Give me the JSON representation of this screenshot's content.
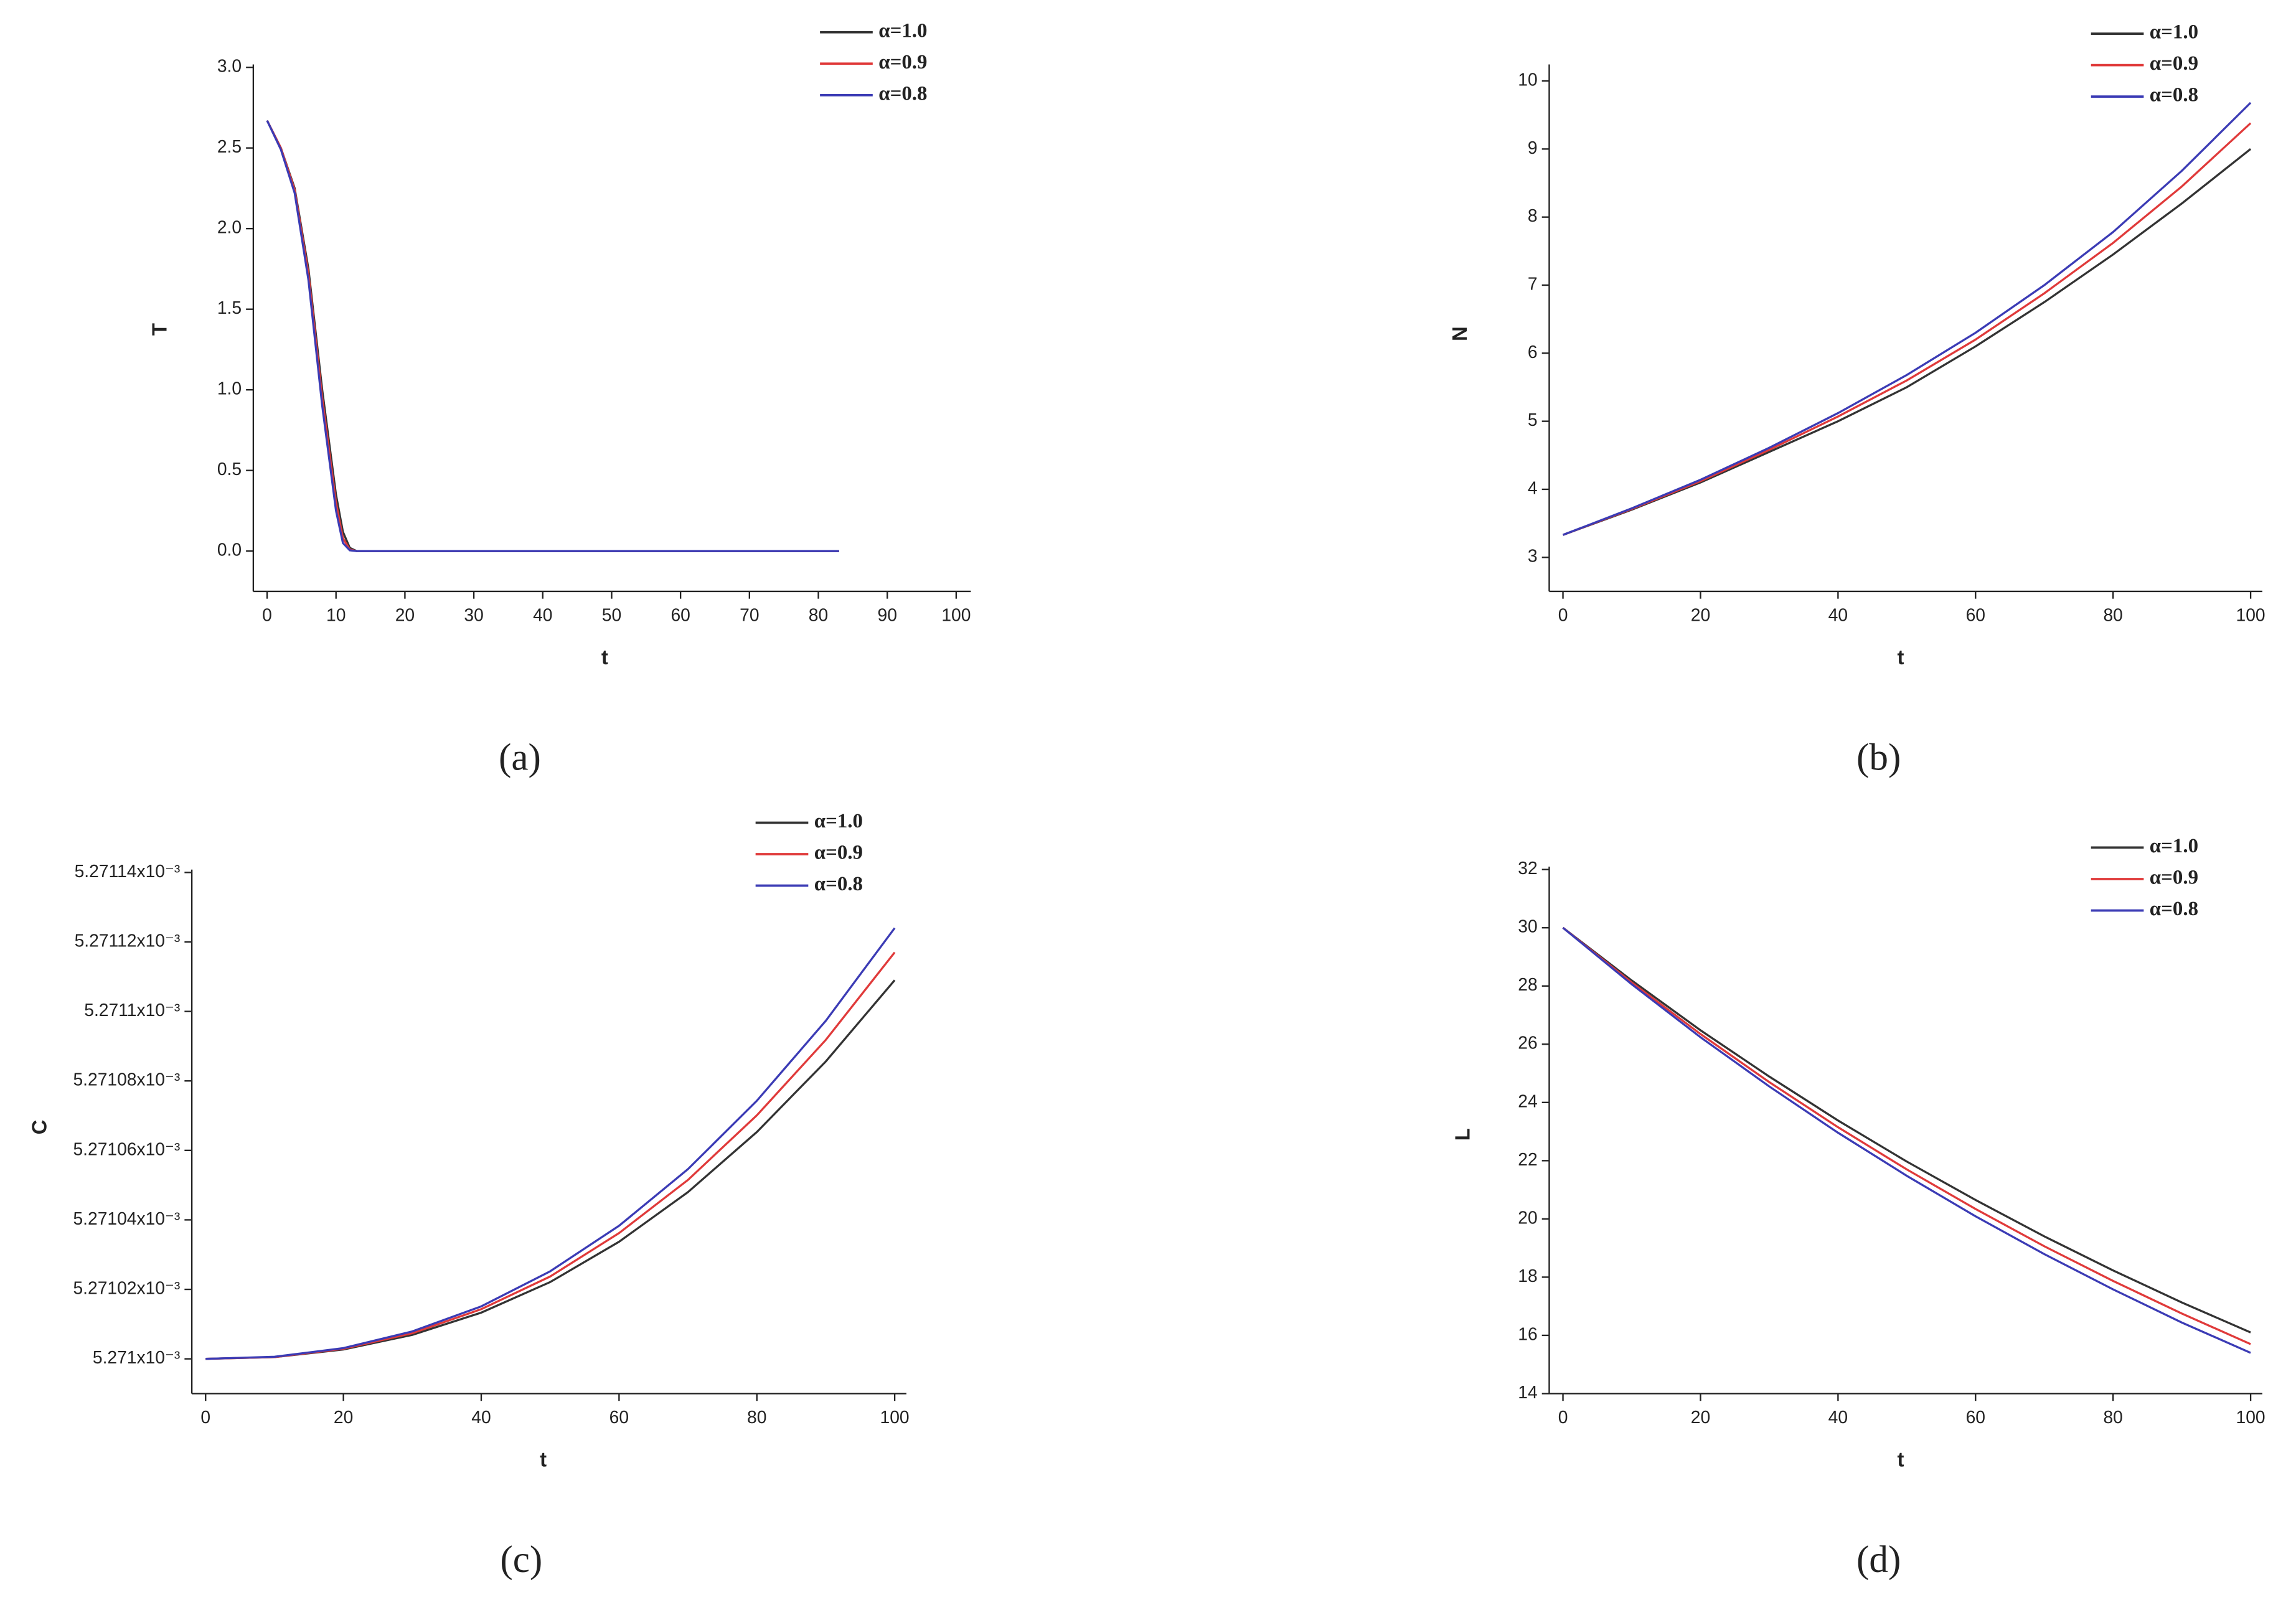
{
  "chart_data": [
    {
      "type": "line",
      "caption": "(a)",
      "xlabel": "t",
      "ylabel": "T",
      "x": [
        0,
        2,
        4,
        6,
        8,
        10,
        11,
        12,
        13,
        20,
        30,
        40,
        50,
        60,
        70,
        80,
        83
      ],
      "series": [
        {
          "name": "α=1.0",
          "color": "#333333",
          "values": [
            2.67,
            2.5,
            2.25,
            1.75,
            1.0,
            0.35,
            0.12,
            0.02,
            0,
            0,
            0,
            0,
            0,
            0,
            0,
            0,
            0
          ]
        },
        {
          "name": "α=0.9",
          "color": "#e03a3a",
          "values": [
            2.67,
            2.5,
            2.24,
            1.72,
            0.95,
            0.3,
            0.08,
            0.01,
            0,
            0,
            0,
            0,
            0,
            0,
            0,
            0,
            0
          ]
        },
        {
          "name": "α=0.8",
          "color": "#3b3bb5",
          "values": [
            2.67,
            2.49,
            2.22,
            1.68,
            0.9,
            0.25,
            0.05,
            0.005,
            0,
            0,
            0,
            0,
            0,
            0,
            0,
            0,
            0
          ]
        }
      ],
      "xlim": [
        -2,
        100
      ],
      "ylim": [
        -0.25,
        3.0
      ],
      "xticks": [
        0,
        10,
        20,
        30,
        40,
        50,
        60,
        70,
        80,
        90,
        100
      ],
      "yticks": [
        {
          "value": 0,
          "label": "0.0"
        },
        0.5,
        {
          "value": 1,
          "label": "1.0"
        },
        1.5,
        {
          "value": 2,
          "label": "2.0"
        },
        2.5,
        {
          "value": 3,
          "label": "3.0"
        }
      ]
    },
    {
      "type": "line",
      "caption": "(b)",
      "xlabel": "t",
      "ylabel": "N",
      "x": [
        0,
        10,
        20,
        30,
        40,
        50,
        60,
        70,
        80,
        90,
        100
      ],
      "series": [
        {
          "name": "α=1.0",
          "color": "#333333",
          "values": [
            3.33,
            3.7,
            4.1,
            4.55,
            5.0,
            5.5,
            6.1,
            6.75,
            7.45,
            8.2,
            9.0
          ]
        },
        {
          "name": "α=0.9",
          "color": "#e03a3a",
          "values": [
            3.33,
            3.71,
            4.12,
            4.58,
            5.07,
            5.6,
            6.2,
            6.88,
            7.62,
            8.45,
            9.38
          ]
        },
        {
          "name": "α=0.8",
          "color": "#3b3bb5",
          "values": [
            3.33,
            3.72,
            4.14,
            4.61,
            5.12,
            5.68,
            6.3,
            7.0,
            7.78,
            8.68,
            9.68
          ]
        }
      ],
      "xlim": [
        -2,
        100
      ],
      "ylim": [
        2.5,
        10.2
      ],
      "xticks": [
        0,
        20,
        40,
        60,
        80,
        100
      ],
      "yticks": [
        3,
        4,
        5,
        6,
        7,
        8,
        9,
        10
      ]
    },
    {
      "type": "line",
      "caption": "(c)",
      "xlabel": "t",
      "ylabel": "C",
      "x": [
        0,
        10,
        20,
        30,
        40,
        50,
        60,
        70,
        80,
        90,
        100
      ],
      "series": [
        {
          "name": "α=1.0",
          "color": "#333333",
          "values": [
            0.005271,
            0.0052710005,
            0.0052710027,
            0.0052710069,
            0.0052710133,
            0.0052710221,
            0.0052710337,
            0.005271048,
            0.0052710653,
            0.0052710856,
            0.005271109
          ]
        },
        {
          "name": "α=0.9",
          "color": "#e03a3a",
          "values": [
            0.005271,
            0.0052710005,
            0.0052710029,
            0.0052710074,
            0.0052710143,
            0.0052710237,
            0.0052710362,
            0.0052710515,
            0.0052710701,
            0.0052710918,
            0.005271117
          ]
        },
        {
          "name": "α=0.8",
          "color": "#3b3bb5",
          "values": [
            0.005271,
            0.0052710006,
            0.0052710031,
            0.0052710079,
            0.0052710151,
            0.0052710252,
            0.0052710383,
            0.0052710546,
            0.0052710743,
            0.0052710973,
            0.005271124
          ]
        }
      ],
      "xlim": [
        -2,
        100
      ],
      "ylim": [
        0.00527099,
        0.00527114
      ],
      "xticks": [
        0,
        20,
        40,
        60,
        80,
        100
      ],
      "yticks": [
        {
          "value": 0.005271,
          "label": "5.271x10⁻³"
        },
        {
          "value": 0.00527102,
          "label": "5.27102x10⁻³"
        },
        {
          "value": 0.00527104,
          "label": "5.27104x10⁻³"
        },
        {
          "value": 0.00527106,
          "label": "5.27106x10⁻³"
        },
        {
          "value": 0.00527108,
          "label": "5.27108x10⁻³"
        },
        {
          "value": 0.0052711,
          "label": "5.2711x10⁻³"
        },
        {
          "value": 0.00527112,
          "label": "5.27112x10⁻³"
        },
        {
          "value": 0.00527114,
          "label": "5.27114x10⁻³"
        }
      ]
    },
    {
      "type": "line",
      "caption": "(d)",
      "xlabel": "t",
      "ylabel": "L",
      "x": [
        0,
        10,
        20,
        30,
        40,
        50,
        60,
        70,
        80,
        90,
        100
      ],
      "series": [
        {
          "name": "α=1.0",
          "color": "#333333",
          "values": [
            30,
            28.19,
            26.48,
            24.89,
            23.38,
            21.97,
            20.65,
            19.4,
            18.23,
            17.13,
            16.1
          ]
        },
        {
          "name": "α=0.9",
          "color": "#e03a3a",
          "values": [
            30,
            28.12,
            26.35,
            24.7,
            23.15,
            21.7,
            20.34,
            19.06,
            17.87,
            16.75,
            15.7
          ]
        },
        {
          "name": "α=0.8",
          "color": "#3b3bb5",
          "values": [
            30,
            28.06,
            26.24,
            24.55,
            22.96,
            21.48,
            20.09,
            18.79,
            17.58,
            16.44,
            15.4
          ]
        }
      ],
      "xlim": [
        -2,
        100
      ],
      "ylim": [
        14,
        32
      ],
      "xticks": [
        0,
        20,
        40,
        60,
        80,
        100
      ],
      "yticks": [
        14,
        16,
        18,
        20,
        22,
        24,
        26,
        28,
        30,
        32
      ]
    }
  ]
}
